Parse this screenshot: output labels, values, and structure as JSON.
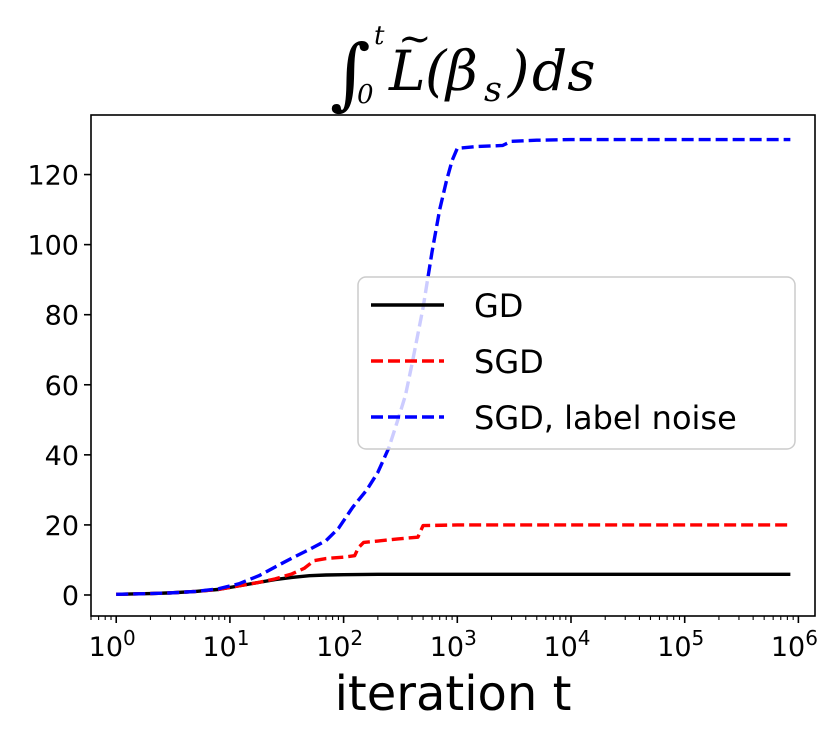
{
  "chart_data": {
    "type": "line",
    "title": "∫₀ᵗ L̃(βₛ)ds",
    "title_parts": {
      "integral": "∫",
      "lower": "0",
      "upper": "t",
      "func": "L",
      "tilde": "~",
      "open": "(",
      "beta": "β",
      "sub": "s",
      "close": ")",
      "ds": "ds"
    },
    "xlabel": "iteration t",
    "ylabel": "",
    "xscale": "log",
    "xlim": [
      0.6,
      1400000
    ],
    "ylim": [
      -6,
      137
    ],
    "xticks": [
      {
        "value": 1,
        "base": "10",
        "exp": "0"
      },
      {
        "value": 10,
        "base": "10",
        "exp": "1"
      },
      {
        "value": 100,
        "base": "10",
        "exp": "2"
      },
      {
        "value": 1000,
        "base": "10",
        "exp": "3"
      },
      {
        "value": 10000,
        "base": "10",
        "exp": "4"
      },
      {
        "value": 100000,
        "base": "10",
        "exp": "5"
      },
      {
        "value": 1000000,
        "base": "10",
        "exp": "6"
      }
    ],
    "yticks": [
      0,
      20,
      40,
      60,
      80,
      100,
      120
    ],
    "legend_position": "center-right",
    "series": [
      {
        "name": "GD",
        "color": "#000000",
        "style": "solid",
        "x": [
          1,
          2,
          3,
          5,
          8,
          12,
          18,
          25,
          35,
          50,
          70,
          100,
          200,
          500,
          1000,
          10000,
          100000,
          850000
        ],
        "y": [
          0.2,
          0.4,
          0.6,
          1.0,
          1.6,
          2.6,
          3.6,
          4.4,
          5.0,
          5.5,
          5.7,
          5.8,
          5.9,
          5.9,
          5.9,
          5.9,
          5.9,
          5.9
        ]
      },
      {
        "name": "SGD",
        "color": "#ff0000",
        "style": "dashed",
        "x": [
          1,
          2,
          3,
          5,
          8,
          12,
          18,
          25,
          35,
          45,
          55,
          70,
          100,
          125,
          135,
          150,
          200,
          300,
          450,
          500,
          1000,
          10000,
          100000,
          850000
        ],
        "y": [
          0.2,
          0.4,
          0.6,
          1.0,
          1.6,
          2.6,
          3.6,
          4.6,
          6.0,
          7.6,
          9.8,
          10.4,
          10.8,
          11.2,
          13.5,
          15.0,
          15.4,
          16.0,
          16.5,
          19.8,
          20.0,
          20.0,
          20.0,
          20.0
        ]
      },
      {
        "name": "SGD, label noise",
        "color": "#0000ff",
        "style": "dashed",
        "x": [
          1,
          2,
          3,
          5,
          8,
          12,
          18,
          25,
          35,
          50,
          70,
          90,
          120,
          160,
          200,
          250,
          300,
          350,
          400,
          500,
          600,
          700,
          800,
          900,
          1000,
          1500,
          2500,
          3000,
          5000,
          10000,
          100000,
          850000
        ],
        "y": [
          0.2,
          0.4,
          0.6,
          1.0,
          1.8,
          3.2,
          5.5,
          8.0,
          10.5,
          13.0,
          15.5,
          19.0,
          25.0,
          30.0,
          35.0,
          42.0,
          50.0,
          57.0,
          66.0,
          82.0,
          98.0,
          110.0,
          118.0,
          124.0,
          127.5,
          128.0,
          128.3,
          129.5,
          129.8,
          130.0,
          130.0,
          130.0
        ]
      }
    ]
  }
}
